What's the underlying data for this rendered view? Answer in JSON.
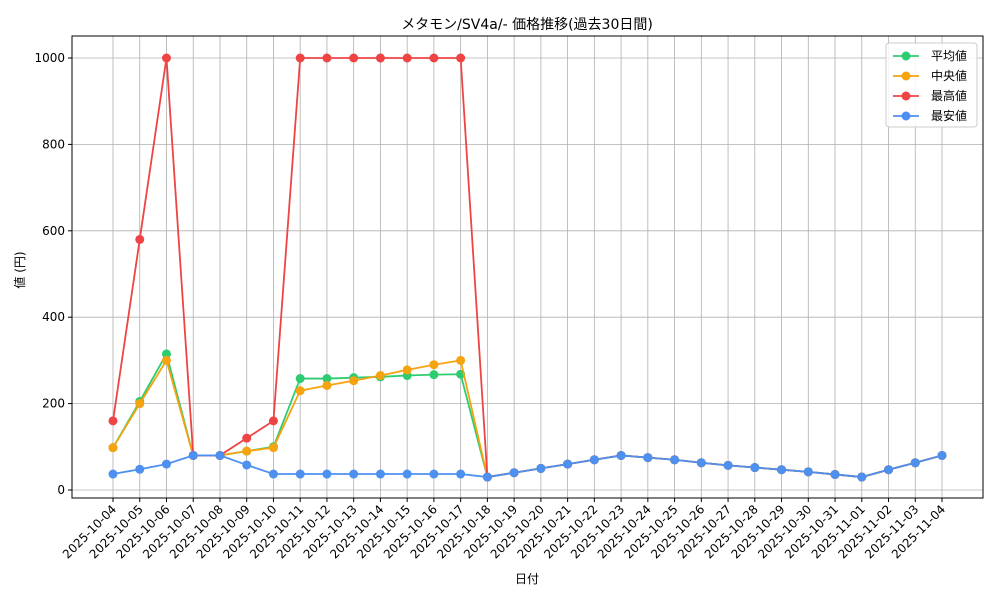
{
  "chart_data": {
    "type": "line",
    "title": "メタモン/SV4a/- 価格推移(過去30日間)",
    "xlabel": "日付",
    "ylabel": "値 (円)",
    "ylim": [
      -30,
      1050
    ],
    "yticks": [
      0,
      200,
      400,
      600,
      800,
      1000
    ],
    "grid": true,
    "legend_position": "top-right",
    "x": [
      "2025-10-04",
      "2025-10-05",
      "2025-10-06",
      "2025-10-07",
      "2025-10-08",
      "2025-10-09",
      "2025-10-10",
      "2025-10-11",
      "2025-10-12",
      "2025-10-13",
      "2025-10-14",
      "2025-10-15",
      "2025-10-16",
      "2025-10-17",
      "2025-10-18",
      "2025-10-19",
      "2025-10-20",
      "2025-10-21",
      "2025-10-22",
      "2025-10-23",
      "2025-10-24",
      "2025-10-25",
      "2025-10-26",
      "2025-10-27",
      "2025-10-28",
      "2025-10-29",
      "2025-10-30",
      "2025-10-31",
      "2025-11-01",
      "2025-11-02",
      "2025-11-03",
      "2025-11-04"
    ],
    "series": [
      {
        "name": "平均値",
        "color": "#2ecc71",
        "values": [
          98,
          205,
          315,
          80,
          80,
          90,
          100,
          258,
          258,
          260,
          262,
          265,
          267,
          268,
          30,
          40,
          50,
          60,
          70,
          80,
          75,
          70,
          63,
          57,
          52,
          47,
          42,
          36,
          30,
          47,
          63,
          80
        ]
      },
      {
        "name": "中央値",
        "color": "#f5a30f",
        "values": [
          98,
          200,
          300,
          80,
          80,
          90,
          98,
          230,
          242,
          253,
          265,
          278,
          290,
          300,
          30,
          40,
          50,
          60,
          70,
          80,
          75,
          70,
          63,
          57,
          52,
          47,
          42,
          36,
          30,
          47,
          63,
          80
        ]
      },
      {
        "name": "最高値",
        "color": "#ef4444",
        "values": [
          160,
          580,
          1000,
          80,
          80,
          120,
          160,
          1000,
          1000,
          1000,
          1000,
          1000,
          1000,
          1000,
          30,
          40,
          50,
          60,
          70,
          80,
          75,
          70,
          63,
          57,
          52,
          47,
          42,
          36,
          30,
          47,
          63,
          80
        ]
      },
      {
        "name": "最安値",
        "color": "#4d90f0",
        "values": [
          37,
          48,
          60,
          80,
          80,
          58,
          37,
          37,
          37,
          37,
          37,
          37,
          37,
          37,
          30,
          40,
          50,
          60,
          70,
          80,
          75,
          70,
          63,
          57,
          52,
          47,
          42,
          36,
          30,
          47,
          63,
          80
        ]
      }
    ]
  }
}
